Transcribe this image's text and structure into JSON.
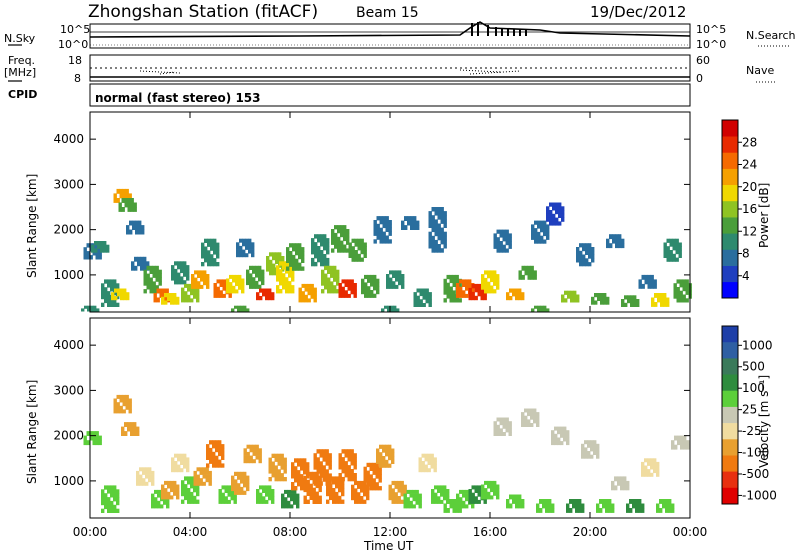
{
  "header": {
    "station": "Zhongshan Station (fitACF)",
    "beam": "Beam 15",
    "date": "19/Dec/2012"
  },
  "strip_panels": {
    "nsky_label": "N.Sky",
    "nsearch_label": "N.Search",
    "nsky_tick_top": "10^5",
    "nsky_tick_bottom": "10^0",
    "freq_label_top": "Freq.",
    "freq_label_bottom": "[MHz]",
    "freq_tick_top": "18",
    "freq_tick_bottom": "8",
    "nave_label": "Nave",
    "nave_tick_top": "60",
    "nave_tick_bottom": "0",
    "cpid_label": "CPID",
    "cpid_text": "normal (fast stereo) 153"
  },
  "colors": {
    "power_scale": [
      "#0000ff",
      "#1f3fbf",
      "#2a6e9e",
      "#2e8a6e",
      "#4a9e3a",
      "#8fc322",
      "#f0d800",
      "#f5a000",
      "#f56a00",
      "#e82a00",
      "#d00000"
    ],
    "velocity_scale": [
      "#1e3fa8",
      "#2e5fa3",
      "#3a7a5a",
      "#2e8c3e",
      "#5ccf3a",
      "#c8c8b4",
      "#f0dca0",
      "#e8a030",
      "#f07a10",
      "#e83010",
      "#e00000"
    ]
  },
  "chart_data": [
    {
      "type": "heatmap",
      "name": "power",
      "ylabel": "Slant Range [km]",
      "colorbar_label": "Power [dB]",
      "colorbar_ticks": [
        "4",
        "8",
        "12",
        "16",
        "20",
        "24",
        "28"
      ],
      "y_ticks": [
        "1000",
        "2000",
        "3000",
        "4000"
      ],
      "ylim": [
        180,
        4600
      ],
      "xlim": [
        0,
        24
      ],
      "cells": [
        [
          0.1,
          1350,
          1700,
          7
        ],
        [
          0.4,
          1500,
          1750,
          9
        ],
        [
          0.8,
          300,
          900,
          10
        ],
        [
          1.2,
          450,
          700,
          20
        ],
        [
          1.3,
          2600,
          2900,
          22
        ],
        [
          1.5,
          2400,
          2700,
          14
        ],
        [
          1.8,
          1900,
          2200,
          8
        ],
        [
          2.0,
          1100,
          1400,
          8
        ],
        [
          2.5,
          600,
          1200,
          12
        ],
        [
          2.9,
          400,
          700,
          24
        ],
        [
          3.2,
          350,
          600,
          18
        ],
        [
          3.6,
          800,
          1300,
          10
        ],
        [
          4.0,
          400,
          800,
          16
        ],
        [
          4.4,
          700,
          1100,
          22
        ],
        [
          4.8,
          1200,
          1800,
          10
        ],
        [
          5.3,
          500,
          900,
          24
        ],
        [
          5.8,
          600,
          1000,
          18
        ],
        [
          6.2,
          1400,
          1800,
          8
        ],
        [
          6.6,
          700,
          1200,
          14
        ],
        [
          7.0,
          450,
          700,
          26
        ],
        [
          7.4,
          1000,
          1500,
          16
        ],
        [
          7.8,
          600,
          1300,
          20
        ],
        [
          8.2,
          1100,
          1700,
          12
        ],
        [
          8.7,
          400,
          800,
          22
        ],
        [
          9.2,
          1200,
          1900,
          9
        ],
        [
          9.6,
          600,
          1200,
          16
        ],
        [
          10.0,
          1500,
          2100,
          12
        ],
        [
          10.3,
          500,
          900,
          26
        ],
        [
          10.7,
          1300,
          1800,
          14
        ],
        [
          11.2,
          500,
          1000,
          14
        ],
        [
          11.7,
          1700,
          2300,
          8
        ],
        [
          12.2,
          700,
          1100,
          10
        ],
        [
          12.8,
          2000,
          2300,
          8
        ],
        [
          13.3,
          300,
          700,
          10
        ],
        [
          13.9,
          1500,
          2500,
          8
        ],
        [
          14.5,
          400,
          1000,
          12
        ],
        [
          15.0,
          500,
          900,
          24
        ],
        [
          15.5,
          450,
          800,
          28
        ],
        [
          16.0,
          600,
          1100,
          18
        ],
        [
          16.5,
          1500,
          2000,
          8
        ],
        [
          17.0,
          450,
          700,
          22
        ],
        [
          17.5,
          900,
          1200,
          12
        ],
        [
          18.0,
          1700,
          2200,
          8
        ],
        [
          18.6,
          2100,
          2600,
          6
        ],
        [
          19.2,
          400,
          650,
          16
        ],
        [
          19.8,
          1200,
          1700,
          8
        ],
        [
          20.4,
          350,
          600,
          14
        ],
        [
          21.0,
          1600,
          1900,
          8
        ],
        [
          21.6,
          300,
          550,
          12
        ],
        [
          22.3,
          700,
          1000,
          8
        ],
        [
          22.8,
          300,
          600,
          20
        ],
        [
          23.3,
          1300,
          1800,
          10
        ],
        [
          23.7,
          400,
          900,
          14
        ],
        [
          0.0,
          200,
          320,
          10
        ],
        [
          6.0,
          200,
          320,
          12
        ],
        [
          12.0,
          200,
          320,
          10
        ],
        [
          18.0,
          200,
          320,
          12
        ]
      ]
    },
    {
      "type": "heatmap",
      "name": "velocity",
      "ylabel": "Slant Range [km]",
      "colorbar_label": "Velocity [m s⁻¹]",
      "colorbar_ticks": [
        "1000",
        "500",
        "100",
        "25",
        "-25",
        "-100",
        "-500",
        "-1000"
      ],
      "y_ticks": [
        "1000",
        "2000",
        "3000",
        "4000"
      ],
      "ylim": [
        180,
        4600
      ],
      "xlim": [
        0,
        24
      ],
      "x_ticks": [
        "00:00",
        "04:00",
        "08:00",
        "12:00",
        "16:00",
        "20:00",
        "00:00"
      ],
      "xlabel": "Time UT",
      "cells": [
        [
          0.1,
          1800,
          2100,
          25
        ],
        [
          0.8,
          300,
          900,
          60
        ],
        [
          1.3,
          2500,
          2900,
          -200
        ],
        [
          1.6,
          2000,
          2300,
          -150
        ],
        [
          2.2,
          900,
          1300,
          -80
        ],
        [
          2.8,
          400,
          800,
          80
        ],
        [
          3.2,
          600,
          1000,
          -120
        ],
        [
          3.6,
          1200,
          1600,
          -60
        ],
        [
          4.0,
          500,
          1100,
          40
        ],
        [
          4.5,
          900,
          1300,
          -150
        ],
        [
          5.0,
          1300,
          1900,
          -300
        ],
        [
          5.5,
          500,
          900,
          80
        ],
        [
          6.0,
          700,
          1200,
          -200
        ],
        [
          6.5,
          1400,
          1800,
          -250
        ],
        [
          7.0,
          500,
          900,
          60
        ],
        [
          7.5,
          1000,
          1600,
          -180
        ],
        [
          8.0,
          400,
          800,
          150
        ],
        [
          8.4,
          800,
          1500,
          -400
        ],
        [
          8.9,
          500,
          1200,
          -400
        ],
        [
          9.3,
          900,
          1700,
          -350
        ],
        [
          9.8,
          500,
          1100,
          -350
        ],
        [
          10.3,
          1000,
          1700,
          -300
        ],
        [
          10.8,
          500,
          1000,
          -300
        ],
        [
          11.3,
          800,
          1400,
          -280
        ],
        [
          11.8,
          1300,
          1800,
          -200
        ],
        [
          12.3,
          500,
          1000,
          -150
        ],
        [
          12.9,
          400,
          800,
          40
        ],
        [
          13.5,
          1200,
          1600,
          -60
        ],
        [
          14.0,
          500,
          900,
          80
        ],
        [
          14.5,
          300,
          600,
          60
        ],
        [
          15.0,
          400,
          800,
          30
        ],
        [
          15.5,
          500,
          900,
          150
        ],
        [
          16.0,
          600,
          1000,
          80
        ],
        [
          16.5,
          2000,
          2400,
          10
        ],
        [
          17.0,
          400,
          700,
          60
        ],
        [
          17.6,
          2200,
          2600,
          10
        ],
        [
          18.2,
          300,
          600,
          60
        ],
        [
          18.8,
          1800,
          2200,
          5
        ],
        [
          19.4,
          300,
          600,
          150
        ],
        [
          20.0,
          1500,
          1900,
          10
        ],
        [
          20.6,
          300,
          600,
          60
        ],
        [
          21.2,
          800,
          1100,
          15
        ],
        [
          21.8,
          300,
          600,
          150
        ],
        [
          22.4,
          1100,
          1500,
          -30
        ],
        [
          23.0,
          300,
          600,
          60
        ],
        [
          23.6,
          1700,
          2000,
          5
        ]
      ]
    }
  ]
}
